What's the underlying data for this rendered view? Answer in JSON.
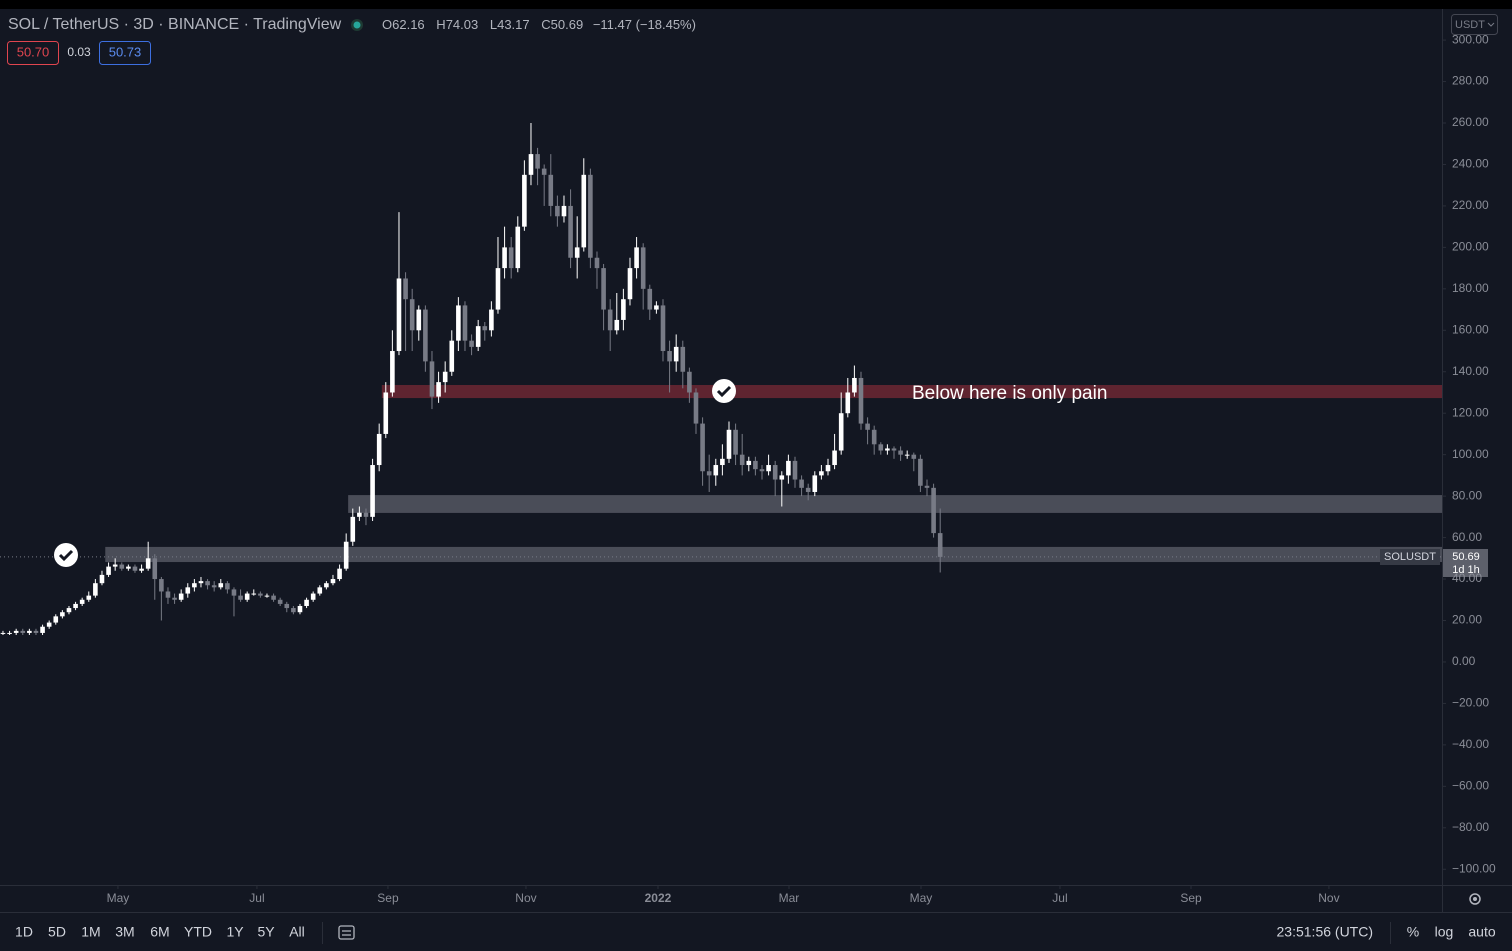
{
  "chart_data": {
    "type": "candlestick",
    "header": {
      "symbol": "SOL / TetherUS · 3D · BINANCE · TradingView",
      "ohlc_labels": [
        "O",
        "H",
        "L",
        "C"
      ],
      "change": "−11.47 (−18.45%)",
      "bid": "50.70",
      "spread": "0.03",
      "ask": "50.73"
    },
    "currency": "USDT",
    "ticker": "SOLUSDT",
    "countdown": "1d 1h",
    "annotation": "Below here is only pain",
    "bull_color": "#ffffff",
    "bear_color": "#787b86",
    "open": [
      14,
      14,
      14,
      15,
      14,
      15,
      14,
      17,
      19,
      22,
      24,
      26,
      28,
      30,
      32,
      38,
      42,
      46,
      47,
      45,
      46,
      44,
      45,
      50,
      40,
      34,
      31,
      30,
      33,
      36,
      38,
      39,
      37,
      36,
      38,
      35,
      32,
      30,
      33,
      33,
      32,
      32,
      30,
      28,
      26,
      24,
      27,
      30,
      33,
      36,
      38,
      40,
      45,
      58,
      70,
      72,
      70,
      95,
      110,
      130,
      150,
      185,
      175,
      160,
      170,
      145,
      128,
      135,
      140,
      155,
      172,
      155,
      152,
      162,
      160,
      170,
      190,
      200,
      190,
      210,
      235,
      245,
      238,
      235,
      220,
      215,
      220,
      195,
      200,
      235,
      195,
      190,
      170,
      160,
      165,
      175,
      190,
      200,
      180,
      170,
      172,
      150,
      145,
      152,
      140,
      130,
      115,
      92,
      90,
      95,
      98,
      112,
      100,
      95,
      97,
      93,
      92,
      95,
      88,
      90,
      97,
      88,
      84,
      82,
      90,
      92,
      95,
      102,
      120,
      130,
      137,
      115,
      112,
      105,
      102,
      103,
      102,
      100,
      100,
      98,
      85,
      84,
      62.16
    ],
    "high": [
      15,
      15,
      16,
      16,
      16,
      16,
      18,
      20,
      23,
      25,
      27,
      29,
      31,
      34,
      40,
      44,
      48,
      50,
      48,
      47,
      47,
      47,
      58,
      52,
      41,
      36,
      33,
      35,
      38,
      40,
      41,
      40,
      39,
      40,
      39,
      36,
      35,
      34,
      35,
      34,
      33,
      33,
      31,
      29,
      27,
      28,
      31,
      34,
      37,
      39,
      42,
      47,
      62,
      74,
      75,
      74,
      98,
      115,
      135,
      160,
      217,
      188,
      180,
      172,
      172,
      150,
      140,
      145,
      160,
      176,
      174,
      158,
      165,
      164,
      174,
      205,
      210,
      205,
      215,
      242,
      260,
      248,
      240,
      245,
      225,
      225,
      228,
      215,
      243,
      238,
      198,
      192,
      175,
      178,
      180,
      195,
      205,
      202,
      182,
      174,
      175,
      155,
      158,
      155,
      142,
      132,
      118,
      100,
      98,
      105,
      116,
      115,
      110,
      99,
      99,
      95,
      100,
      97,
      92,
      100,
      99,
      90,
      86,
      92,
      95,
      98,
      110,
      130,
      137,
      143,
      140,
      118,
      114,
      106,
      105,
      104,
      104,
      102,
      101,
      100,
      88,
      86,
      74.03
    ],
    "low": [
      13,
      13,
      13,
      13,
      13,
      13,
      13,
      16,
      18,
      21,
      23,
      25,
      27,
      29,
      31,
      37,
      41,
      44,
      44,
      44,
      43,
      43,
      44,
      30,
      20,
      28,
      28,
      29,
      31,
      34,
      36,
      35,
      34,
      35,
      33,
      22,
      29,
      29,
      32,
      31,
      31,
      29,
      27,
      24,
      23,
      23,
      26,
      29,
      32,
      35,
      37,
      39,
      44,
      56,
      68,
      66,
      68,
      92,
      108,
      128,
      148,
      150,
      150,
      155,
      140,
      122,
      125,
      130,
      138,
      150,
      150,
      148,
      150,
      155,
      157,
      168,
      185,
      185,
      188,
      208,
      230,
      230,
      220,
      215,
      210,
      212,
      190,
      185,
      198,
      190,
      180,
      160,
      150,
      158,
      160,
      172,
      185,
      170,
      165,
      168,
      145,
      130,
      140,
      132,
      125,
      110,
      85,
      82,
      85,
      90,
      96,
      95,
      90,
      92,
      90,
      88,
      90,
      80,
      75,
      86,
      84,
      80,
      78,
      80,
      88,
      90,
      93,
      100,
      118,
      128,
      112,
      105,
      100,
      100,
      100,
      98,
      97,
      98,
      92,
      82,
      80,
      60,
      43.17
    ],
    "close": [
      14,
      14,
      15,
      14,
      15,
      14,
      17,
      19,
      22,
      24,
      26,
      28,
      30,
      32,
      38,
      42,
      46,
      47,
      45,
      46,
      44,
      45,
      50,
      40,
      34,
      31,
      30,
      33,
      36,
      38,
      39,
      37,
      36,
      38,
      35,
      32,
      30,
      33,
      33,
      32,
      32,
      30,
      28,
      26,
      24,
      27,
      30,
      33,
      36,
      38,
      40,
      45,
      58,
      70,
      72,
      70,
      95,
      110,
      130,
      150,
      185,
      175,
      160,
      170,
      145,
      128,
      135,
      140,
      155,
      172,
      155,
      152,
      162,
      160,
      170,
      190,
      200,
      190,
      210,
      235,
      245,
      238,
      235,
      220,
      215,
      220,
      195,
      200,
      235,
      195,
      190,
      170,
      160,
      165,
      175,
      190,
      200,
      180,
      170,
      172,
      150,
      145,
      152,
      140,
      130,
      115,
      92,
      90,
      95,
      98,
      112,
      100,
      95,
      97,
      93,
      92,
      95,
      88,
      90,
      97,
      88,
      84,
      82,
      90,
      92,
      95,
      102,
      120,
      130,
      137,
      115,
      112,
      105,
      102,
      103,
      102,
      100,
      100,
      98,
      85,
      84,
      62.16,
      50.69
    ],
    "zones": [
      {
        "low": 127.3,
        "high": 133.6,
        "from": 57.4,
        "color": "#7a2a35"
      },
      {
        "low": 71.9,
        "high": 80.5,
        "from": 52.3,
        "color": "#5d606b"
      },
      {
        "low": 48.2,
        "high": 55.5,
        "from": 15.5,
        "color": "#5d606b"
      }
    ],
    "xlim": [
      -0.45,
      218.03
    ],
    "xticks": [
      {
        "value": 17.42,
        "label": "May"
      },
      {
        "value": 38.48,
        "label": "Jul"
      },
      {
        "value": 58.33,
        "label": "Sep"
      },
      {
        "value": 79.24,
        "label": "Nov"
      },
      {
        "value": 99.24,
        "label": "2022"
      },
      {
        "value": 119.09,
        "label": "Mar"
      },
      {
        "value": 139.09,
        "label": "May"
      },
      {
        "value": 160.15,
        "label": "Jul"
      },
      {
        "value": 180,
        "label": "Sep"
      },
      {
        "value": 200.9,
        "label": "Nov"
      }
    ],
    "ylim": [
      -107.6,
      315
    ],
    "yticks": [
      {
        "value": 300,
        "label": "300.00"
      },
      {
        "value": 280,
        "label": "280.00"
      },
      {
        "value": 260,
        "label": "260.00"
      },
      {
        "value": 240,
        "label": "240.00"
      },
      {
        "value": 220,
        "label": "220.00"
      },
      {
        "value": 200,
        "label": "200.00"
      },
      {
        "value": 180,
        "label": "180.00"
      },
      {
        "value": 160,
        "label": "160.00"
      },
      {
        "value": 140,
        "label": "140.00"
      },
      {
        "value": 120,
        "label": "120.00"
      },
      {
        "value": 100,
        "label": "100.00"
      },
      {
        "value": 80,
        "label": "80.00"
      },
      {
        "value": 60,
        "label": "60.00"
      },
      {
        "value": 40,
        "label": "40.00"
      },
      {
        "value": 20,
        "label": "20.00"
      },
      {
        "value": 0,
        "label": "0.00"
      },
      {
        "value": -20,
        "label": "−20.00"
      },
      {
        "value": -40,
        "label": "−40.00"
      },
      {
        "value": -60,
        "label": "−60.00"
      },
      {
        "value": -80,
        "label": "−80.00"
      },
      {
        "value": -100,
        "label": "−100.00"
      }
    ],
    "toolbar": {
      "ranges": [
        "1D",
        "5D",
        "1M",
        "3M",
        "6M",
        "YTD",
        "1Y",
        "5Y",
        "All"
      ],
      "clock": "23:51:56 (UTC)",
      "options": [
        "%",
        "log",
        "auto"
      ]
    }
  }
}
